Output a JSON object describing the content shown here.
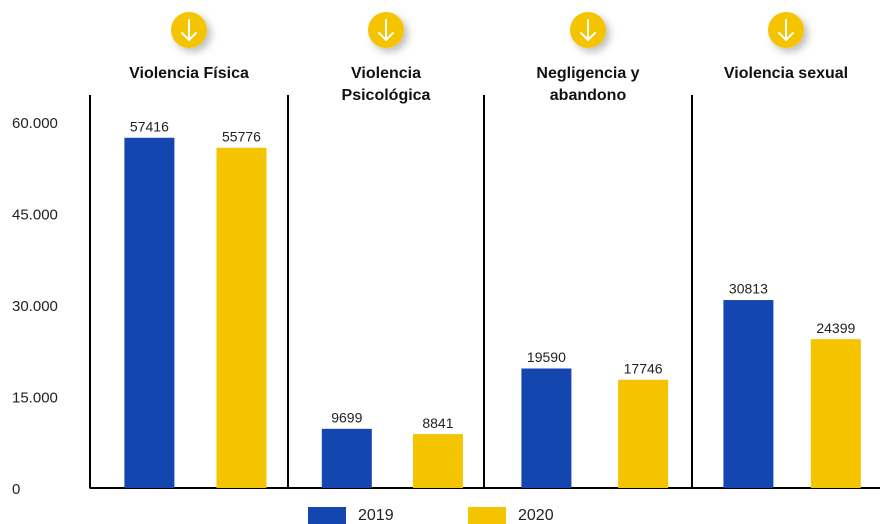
{
  "chart_data": {
    "type": "bar",
    "categories": [
      "Violencia Física",
      "Violencia Psicológica",
      "Negligencia y abandono",
      "Violencia sexual"
    ],
    "series": [
      {
        "name": "2019",
        "color": "#1446b0",
        "values": [
          57416,
          9699,
          19590,
          30813
        ]
      },
      {
        "name": "2020",
        "color": "#f5c400",
        "values": [
          55776,
          8841,
          17746,
          24399
        ]
      }
    ],
    "ylim": [
      0,
      60000
    ],
    "yticks": [
      0,
      {
        "value": 15000,
        "label": "15.000"
      },
      {
        "value": 30000,
        "label": "30.000"
      },
      {
        "value": 45000,
        "label": "45.000"
      },
      {
        "value": 60000,
        "label": "60.000"
      }
    ],
    "legend": "bottom"
  }
}
